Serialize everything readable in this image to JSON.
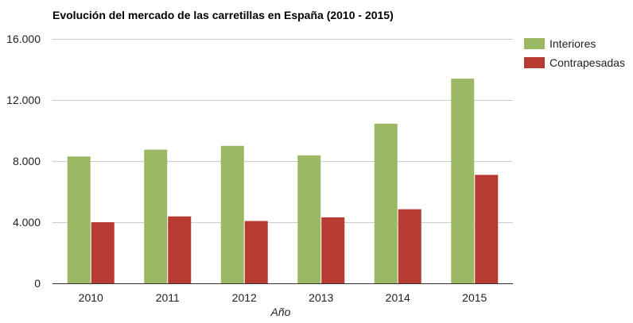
{
  "chart_data": {
    "type": "bar",
    "title": "Evolución del mercado de las carretillas en España (2010 - 2015)",
    "xlabel": "Año",
    "ylabel": "",
    "categories": [
      "2010",
      "2011",
      "2012",
      "2013",
      "2014",
      "2015"
    ],
    "series": [
      {
        "name": "Interiores",
        "color": "#9cb864",
        "values": [
          8300,
          8750,
          9000,
          8380,
          10450,
          13400
        ]
      },
      {
        "name": "Contrapesadas",
        "color": "#b73b32",
        "values": [
          4000,
          4380,
          4080,
          4320,
          4850,
          7100
        ]
      }
    ],
    "ylim": [
      0,
      16000
    ],
    "yticks": [
      0,
      4000,
      8000,
      12000,
      16000
    ],
    "ytick_labels": [
      "0",
      "4.000",
      "8.000",
      "12.000",
      "16.000"
    ],
    "grid": true,
    "legend_position": "right"
  }
}
